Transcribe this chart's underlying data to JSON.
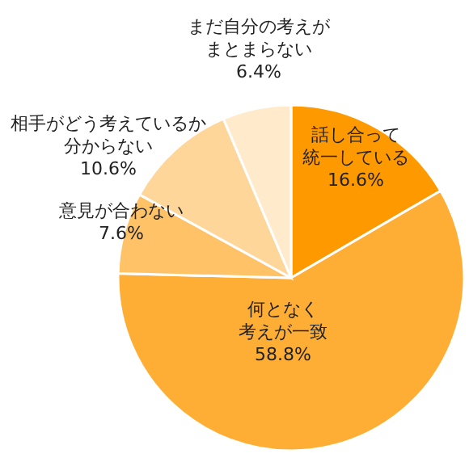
{
  "chart_data": {
    "type": "pie",
    "categories": [
      "話し合って統一している",
      "何となく考えが一致",
      "意見が合わない",
      "相手がどう考えているか分からない",
      "まだ自分の考えがまとまらない"
    ],
    "values": [
      16.6,
      58.8,
      7.6,
      10.6,
      6.4
    ],
    "value_labels": [
      "16.6%",
      "58.8%",
      "7.6%",
      "10.6%",
      "6.4%"
    ],
    "colors": [
      "#ff9900",
      "#ffae35",
      "#ffc266",
      "#ffd699",
      "#ffebcc"
    ]
  }
}
